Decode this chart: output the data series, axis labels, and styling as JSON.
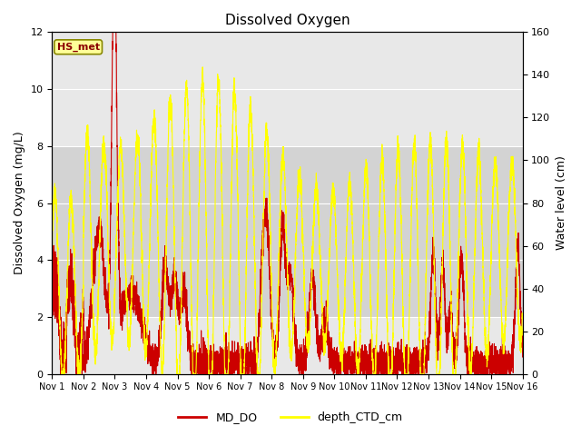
{
  "title": "Dissolved Oxygen",
  "ylabel_left": "Dissolved Oxygen (mg/L)",
  "ylabel_right": "Water level (cm)",
  "ylim_left": [
    0,
    12
  ],
  "ylim_right": [
    0,
    160
  ],
  "label_box_text": "HS_met",
  "legend_labels": [
    "MD_DO",
    "depth_CTD_cm"
  ],
  "line_colors": [
    "#cc0000",
    "#ffff00"
  ],
  "background_color": "#ffffff",
  "plot_bg_color": "#e8e8e8",
  "band_lo": 2,
  "band_hi": 8,
  "band_color": "#d3d3d3",
  "x_tick_labels": [
    "Nov 1",
    "Nov 2",
    "Nov 3",
    "Nov 4",
    "Nov 5",
    "Nov 6",
    "Nov 7",
    "Nov 8",
    "Nov 9",
    "Nov 10",
    "Nov 11",
    "Nov 12",
    "Nov 13",
    "Nov 14",
    "Nov 15",
    "Nov 16"
  ],
  "n_points": 5000,
  "title_fontsize": 11,
  "axis_label_fontsize": 9,
  "tick_fontsize": 8,
  "legend_fontsize": 9
}
